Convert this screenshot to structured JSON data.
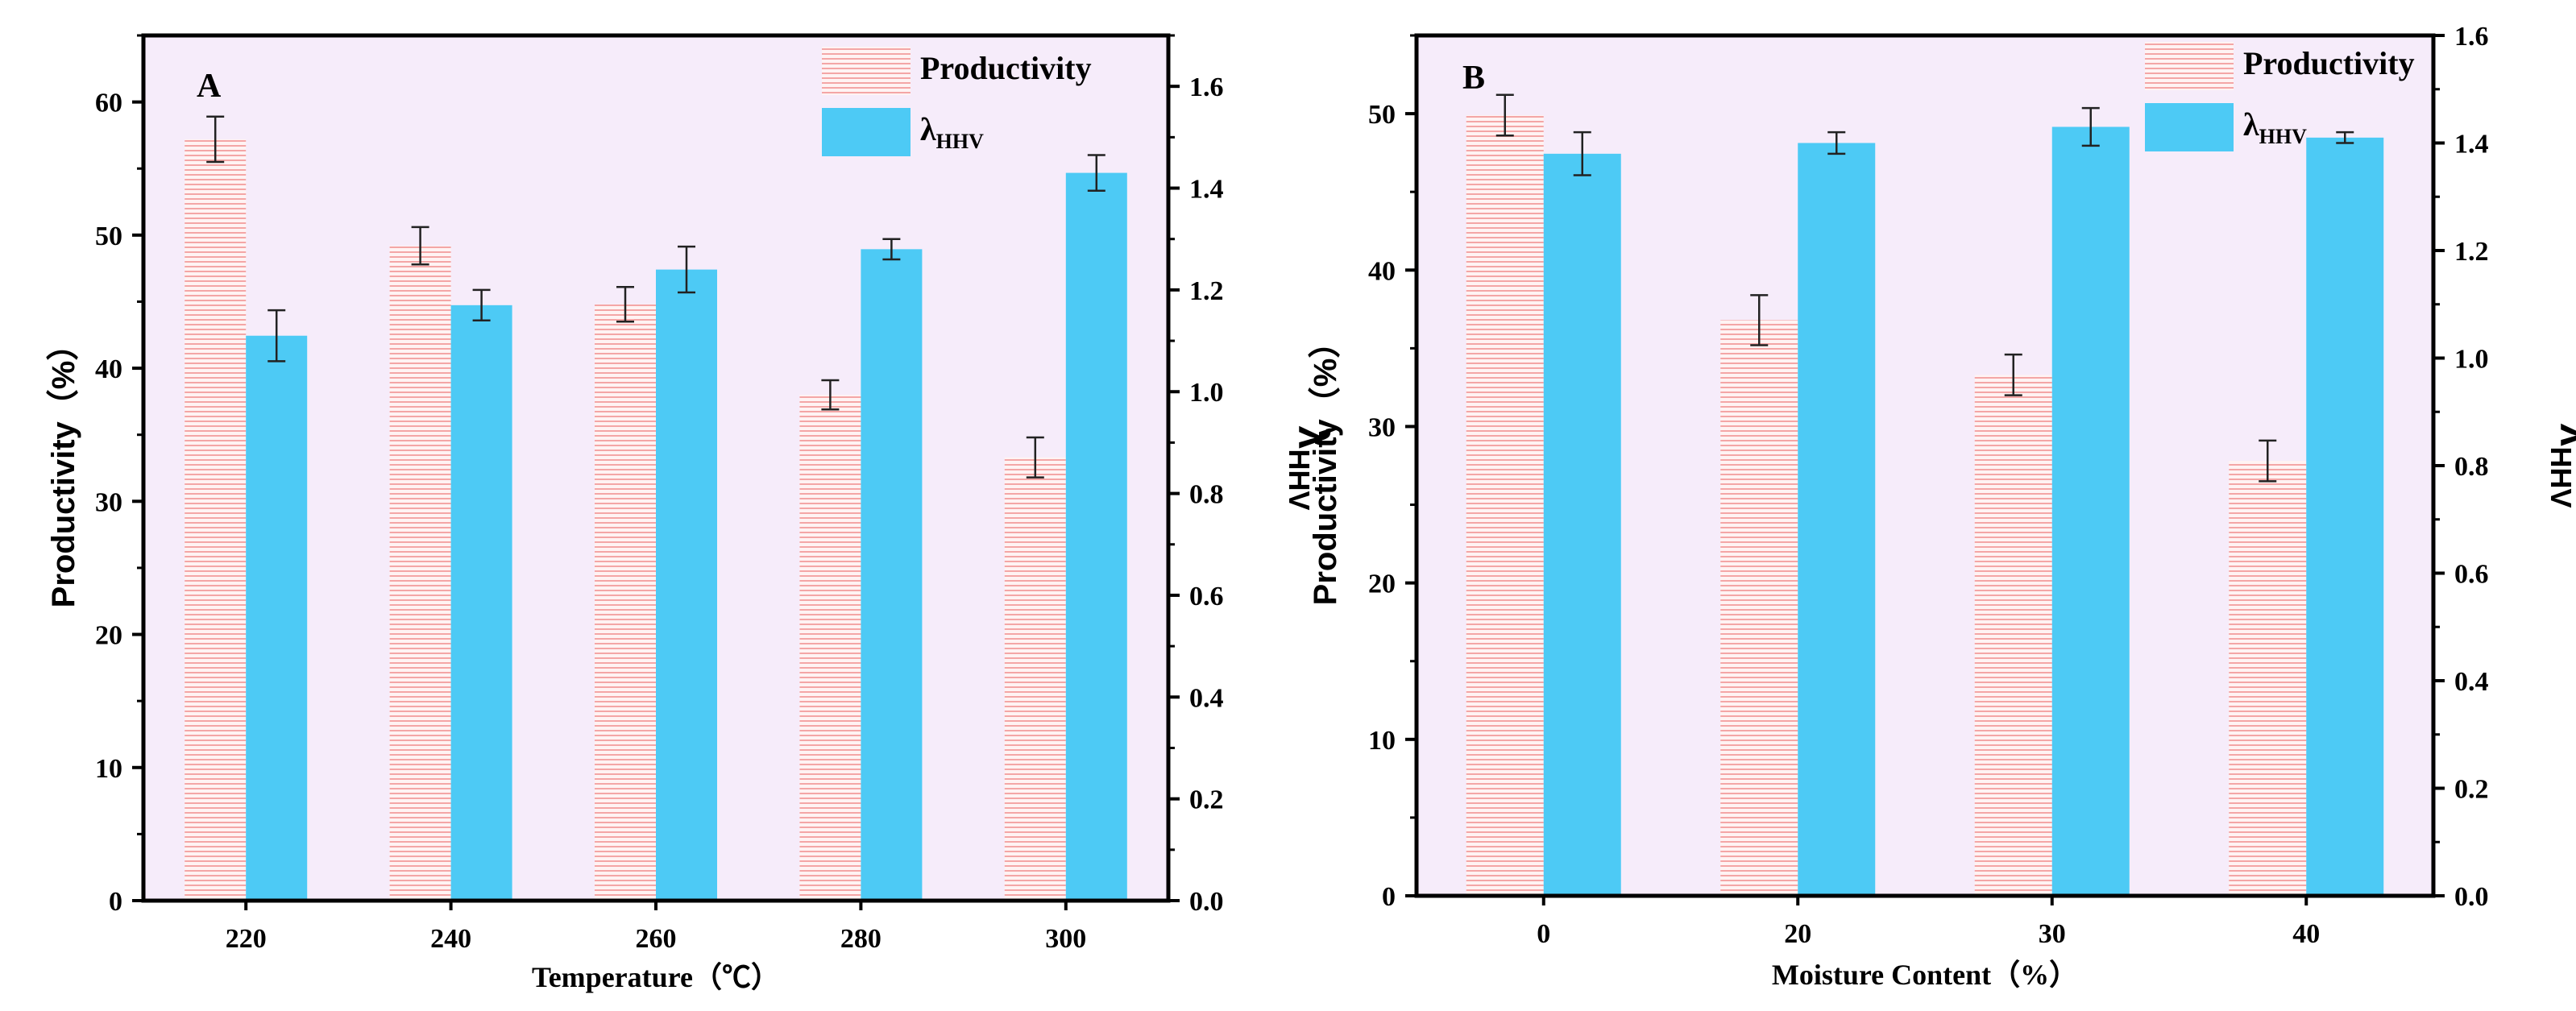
{
  "chart_data": [
    {
      "type": "bar",
      "panel_label": "A",
      "xlabel": "Temperature（℃）",
      "ylabel": "Productivity（%）",
      "y2label": {
        "main": "λ",
        "sub": "HHV"
      },
      "categories": [
        "220",
        "240",
        "260",
        "280",
        "300"
      ],
      "ylim": [
        0,
        65
      ],
      "yticks": [
        "0",
        "10",
        "20",
        "30",
        "40",
        "50",
        "60"
      ],
      "y2lim": [
        0,
        1.7
      ],
      "y2ticks": [
        "0.0",
        "0.2",
        "0.4",
        "0.6",
        "0.8",
        "1.0",
        "1.2",
        "1.4",
        "1.6"
      ],
      "legend_position": "top-right",
      "series": [
        {
          "name": "Productivity",
          "axis": "left",
          "color": "#f4a6a6",
          "values": [
            57.2,
            49.2,
            44.8,
            38.0,
            33.3
          ],
          "errors": [
            1.7,
            1.4,
            1.3,
            1.1,
            1.5
          ]
        },
        {
          "name": "λHHV",
          "name_main": "λ",
          "name_sub": "HHV",
          "axis": "right",
          "color": "#4dcaf5",
          "values": [
            1.11,
            1.17,
            1.24,
            1.28,
            1.43
          ],
          "errors": [
            0.05,
            0.03,
            0.045,
            0.02,
            0.035
          ]
        }
      ],
      "background": "#f6ecfa"
    },
    {
      "type": "bar",
      "panel_label": "B",
      "xlabel": "Moisture Content（%）",
      "ylabel": "Productivity（%）",
      "y2label": {
        "main": "λ",
        "sub": "HHV"
      },
      "categories": [
        "0",
        "20",
        "30",
        "40"
      ],
      "ylim": [
        0,
        55
      ],
      "yticks": [
        "0",
        "10",
        "20",
        "30",
        "40",
        "50"
      ],
      "y2lim": [
        0,
        1.6
      ],
      "y2ticks": [
        "0.0",
        "0.2",
        "0.4",
        "0.6",
        "0.8",
        "1.0",
        "1.2",
        "1.4",
        "1.6"
      ],
      "legend_position": "top-right",
      "series": [
        {
          "name": "Productivity",
          "axis": "left",
          "color": "#f4a6a6",
          "values": [
            49.9,
            36.8,
            33.3,
            27.8
          ],
          "errors": [
            1.3,
            1.6,
            1.3,
            1.3
          ]
        },
        {
          "name": "λHHV",
          "name_main": "λ",
          "name_sub": "HHV",
          "axis": "right",
          "color": "#4dcaf5",
          "values": [
            1.38,
            1.4,
            1.43,
            1.41
          ],
          "errors": [
            0.04,
            0.02,
            0.035,
            0.01
          ]
        }
      ],
      "background": "#f6ecfa"
    }
  ]
}
